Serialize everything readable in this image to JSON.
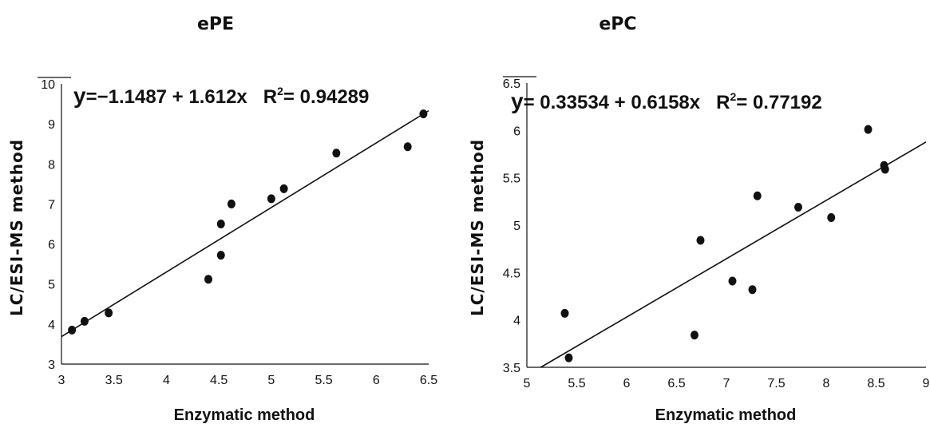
{
  "chart_data": [
    {
      "type": "scatter",
      "title": "ePE",
      "xlabel": "Enzymatic method",
      "ylabel": "LC/ESI-MS method",
      "xlim": [
        3,
        6.5
      ],
      "ylim": [
        3,
        10
      ],
      "xticks": [
        "3",
        "3.5",
        "4",
        "4.5",
        "5",
        "5.5",
        "6",
        "6.5"
      ],
      "yticks": [
        "3",
        "4",
        "5",
        "6",
        "7",
        "8",
        "9",
        "10"
      ],
      "equation": {
        "y": "y",
        "rest": "=−1.1487 + 1.612x",
        "r2_label": "R",
        "r2_sup": "2",
        "r2_value": "= 0.94289"
      },
      "fit": {
        "intercept": -1.1487,
        "slope": 1.612
      },
      "points": [
        {
          "x": 3.1,
          "y": 3.85
        },
        {
          "x": 3.22,
          "y": 4.07
        },
        {
          "x": 3.45,
          "y": 4.28
        },
        {
          "x": 4.4,
          "y": 5.12
        },
        {
          "x": 4.52,
          "y": 5.72
        },
        {
          "x": 4.52,
          "y": 6.5
        },
        {
          "x": 4.62,
          "y": 7.0
        },
        {
          "x": 5.0,
          "y": 7.13
        },
        {
          "x": 5.12,
          "y": 7.38
        },
        {
          "x": 5.62,
          "y": 8.27
        },
        {
          "x": 6.3,
          "y": 8.43
        },
        {
          "x": 6.45,
          "y": 9.25
        }
      ]
    },
    {
      "type": "scatter",
      "title": "ePC",
      "xlabel": "Enzymatic method",
      "ylabel": "LC/ESI-MS method",
      "xlim": [
        5,
        9
      ],
      "ylim": [
        3.5,
        6.5
      ],
      "xticks": [
        "5",
        "5.5",
        "6",
        "6.5",
        "7",
        "7.5",
        "8",
        "8.5",
        "9"
      ],
      "yticks": [
        "3.5",
        "4",
        "4.5",
        "5",
        "5.5",
        "6",
        "6.5"
      ],
      "equation": {
        "y": "y",
        "rest": "= 0.33534 + 0.6158x",
        "r2_label": "R",
        "r2_sup": "2",
        "r2_value": "= 0.77192"
      },
      "fit": {
        "intercept": 0.33534,
        "slope": 0.6158
      },
      "points": [
        {
          "x": 5.38,
          "y": 4.07
        },
        {
          "x": 5.42,
          "y": 3.6
        },
        {
          "x": 6.68,
          "y": 3.84
        },
        {
          "x": 6.74,
          "y": 4.84
        },
        {
          "x": 7.06,
          "y": 4.41
        },
        {
          "x": 7.26,
          "y": 4.32
        },
        {
          "x": 7.31,
          "y": 5.31
        },
        {
          "x": 7.72,
          "y": 5.19
        },
        {
          "x": 8.05,
          "y": 5.08
        },
        {
          "x": 8.42,
          "y": 6.01
        },
        {
          "x": 8.58,
          "y": 5.63
        },
        {
          "x": 8.59,
          "y": 5.59
        }
      ]
    }
  ]
}
